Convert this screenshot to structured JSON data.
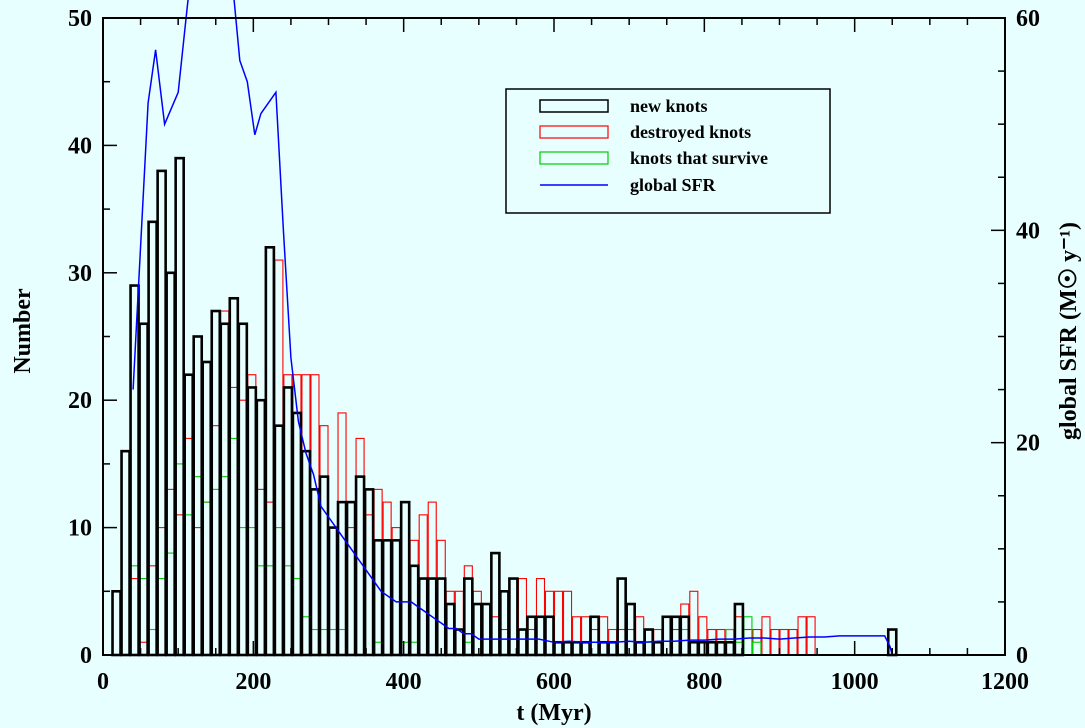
{
  "chart_data": {
    "type": "bar",
    "xlabel": "t (Myr)",
    "ylabel_left": "Number",
    "ylabel_right": "global SFR (M☉ y⁻¹)",
    "xlim": [
      0,
      1200
    ],
    "ylim_left": [
      0,
      50
    ],
    "ylim_right": [
      0,
      60
    ],
    "x_ticks": [
      0,
      200,
      400,
      600,
      800,
      1000,
      1200
    ],
    "y_ticks_left": [
      0,
      10,
      20,
      30,
      40,
      50
    ],
    "y_ticks_right": [
      0,
      20,
      40,
      60
    ],
    "bin_width": 12,
    "legend_position": "top-right",
    "background": "#e8ffff",
    "series": [
      {
        "name": "new knots",
        "color": "#000000",
        "bin_starts": [
          12,
          24,
          36,
          48,
          60,
          72,
          84,
          96,
          108,
          120,
          132,
          144,
          156,
          168,
          180,
          192,
          204,
          216,
          228,
          240,
          252,
          264,
          276,
          288,
          300,
          312,
          324,
          336,
          348,
          360,
          372,
          384,
          396,
          408,
          420,
          432,
          444,
          456,
          468,
          480,
          492,
          504,
          516,
          528,
          540,
          552,
          564,
          576,
          588,
          600,
          612,
          624,
          636,
          648,
          660,
          672,
          684,
          696,
          708,
          720,
          732,
          744,
          756,
          768,
          780,
          792,
          804,
          816,
          828,
          840,
          852,
          864,
          876,
          888,
          900,
          912,
          924,
          936,
          948,
          960,
          972,
          984,
          996,
          1008,
          1020,
          1032,
          1044,
          1056
        ],
        "values": [
          5,
          16,
          29,
          26,
          34,
          38,
          30,
          39,
          22,
          25,
          23,
          27,
          26,
          28,
          26,
          21,
          20,
          32,
          18,
          21,
          19,
          16,
          13,
          14,
          10,
          12,
          12,
          14,
          13,
          9,
          9,
          9,
          12,
          7,
          6,
          6,
          6,
          4,
          2,
          6,
          4,
          4,
          8,
          5,
          6,
          2,
          3,
          3,
          3,
          1,
          1,
          1,
          1,
          3,
          1,
          1,
          6,
          4,
          1,
          2,
          1,
          3,
          3,
          3,
          1,
          1,
          1,
          1,
          1,
          4,
          0,
          0,
          0,
          0,
          0,
          0,
          0,
          0,
          0,
          0,
          0,
          0,
          0,
          0,
          0,
          0,
          2,
          0
        ]
      },
      {
        "name": "destroyed knots",
        "color": "#ff0000",
        "bin_starts": [
          36,
          48,
          60,
          72,
          84,
          96,
          108,
          120,
          132,
          144,
          156,
          168,
          180,
          192,
          204,
          216,
          228,
          240,
          252,
          264,
          276,
          288,
          300,
          312,
          324,
          336,
          348,
          360,
          372,
          384,
          396,
          408,
          420,
          432,
          444,
          456,
          468,
          480,
          492,
          504,
          516,
          528,
          540,
          552,
          564,
          576,
          588,
          600,
          612,
          624,
          636,
          648,
          660,
          672,
          684,
          696,
          708,
          720,
          732,
          744,
          756,
          768,
          780,
          792,
          804,
          816,
          828,
          840,
          852,
          864,
          876,
          888,
          900,
          912,
          924,
          936
        ],
        "values": [
          6,
          1,
          7,
          10,
          13,
          11,
          17,
          10,
          12,
          18,
          27,
          21,
          20,
          22,
          13,
          12,
          31,
          22,
          22,
          22,
          22,
          18,
          10,
          19,
          10,
          17,
          11,
          13,
          12,
          10,
          12,
          9,
          11,
          12,
          9,
          5,
          5,
          7,
          5,
          4,
          3,
          2,
          6,
          6,
          2,
          6,
          5,
          5,
          5,
          3,
          3,
          2,
          3,
          2,
          2,
          2,
          3,
          2,
          2,
          3,
          2,
          4,
          5,
          3,
          2,
          2,
          2,
          3,
          2,
          2,
          3,
          2,
          2,
          2,
          3,
          3
        ]
      },
      {
        "name": "knots that survive",
        "color": "#00cc00",
        "bin_starts": [
          36,
          48,
          60,
          72,
          84,
          96,
          108,
          120,
          132,
          144,
          156,
          168,
          180,
          192,
          204,
          216,
          228,
          240,
          252,
          264,
          276,
          288,
          300,
          312,
          324,
          336,
          348,
          360,
          372,
          384,
          396,
          408,
          420,
          432,
          444,
          456,
          468,
          480,
          492,
          504,
          516,
          528,
          540,
          552,
          564,
          576,
          588,
          600,
          612,
          624,
          636,
          648,
          660,
          672,
          684,
          696,
          708,
          720,
          732,
          744,
          756,
          768,
          780,
          792,
          804,
          816,
          828,
          840,
          852,
          864,
          876,
          888,
          900,
          912,
          924,
          936
        ],
        "values": [
          7,
          6,
          2,
          6,
          8,
          15,
          11,
          14,
          12,
          13,
          14,
          17,
          10,
          10,
          7,
          7,
          10,
          7,
          6,
          3,
          2,
          2,
          2,
          2,
          0,
          0,
          0,
          1,
          0,
          0,
          1,
          1,
          0,
          0,
          0,
          0,
          0,
          1,
          0,
          0,
          0,
          0,
          0,
          0,
          0,
          0,
          0,
          0,
          0,
          0,
          0,
          0,
          0,
          0,
          0,
          0,
          0,
          1,
          0,
          0,
          0,
          2,
          1,
          0,
          0,
          0,
          2,
          1,
          3,
          1,
          0,
          0,
          0,
          0,
          0,
          0
        ]
      },
      {
        "name": "global SFR",
        "color": "#0000ff",
        "axis": "right",
        "x": [
          40,
          60,
          70,
          82,
          100,
          112,
          120,
          130,
          140,
          150,
          160,
          170,
          182,
          192,
          202,
          210,
          220,
          230,
          240,
          250,
          260,
          270,
          280,
          290,
          300,
          310,
          320,
          330,
          340,
          350,
          360,
          370,
          380,
          390,
          400,
          410,
          420,
          430,
          440,
          450,
          460,
          470,
          480,
          490,
          500,
          520,
          540,
          560,
          580,
          600,
          620,
          640,
          660,
          680,
          700,
          720,
          740,
          760,
          780,
          800,
          820,
          840,
          860,
          880,
          900,
          920,
          940,
          960,
          980,
          1000,
          1020,
          1040,
          1047,
          1050
        ],
        "y": [
          25,
          52,
          57,
          50,
          53,
          61,
          66,
          67,
          66,
          64,
          63,
          65,
          56,
          54,
          49,
          51,
          52,
          53,
          40,
          28,
          22,
          19,
          17,
          14,
          13,
          12,
          11,
          10,
          9,
          8,
          7,
          6,
          5.5,
          5,
          5,
          5,
          4.5,
          4,
          3.5,
          3,
          2.5,
          2.5,
          2,
          2,
          1.5,
          1.5,
          1.5,
          1.5,
          1.5,
          1.2,
          1.3,
          1.2,
          1.2,
          1.2,
          1.3,
          1.2,
          1.3,
          1.3,
          1.4,
          1.4,
          1.5,
          1.5,
          1.6,
          1.6,
          1.5,
          1.6,
          1.7,
          1.7,
          1.8,
          1.8,
          1.8,
          1.8,
          0.8,
          0
        ]
      }
    ]
  }
}
